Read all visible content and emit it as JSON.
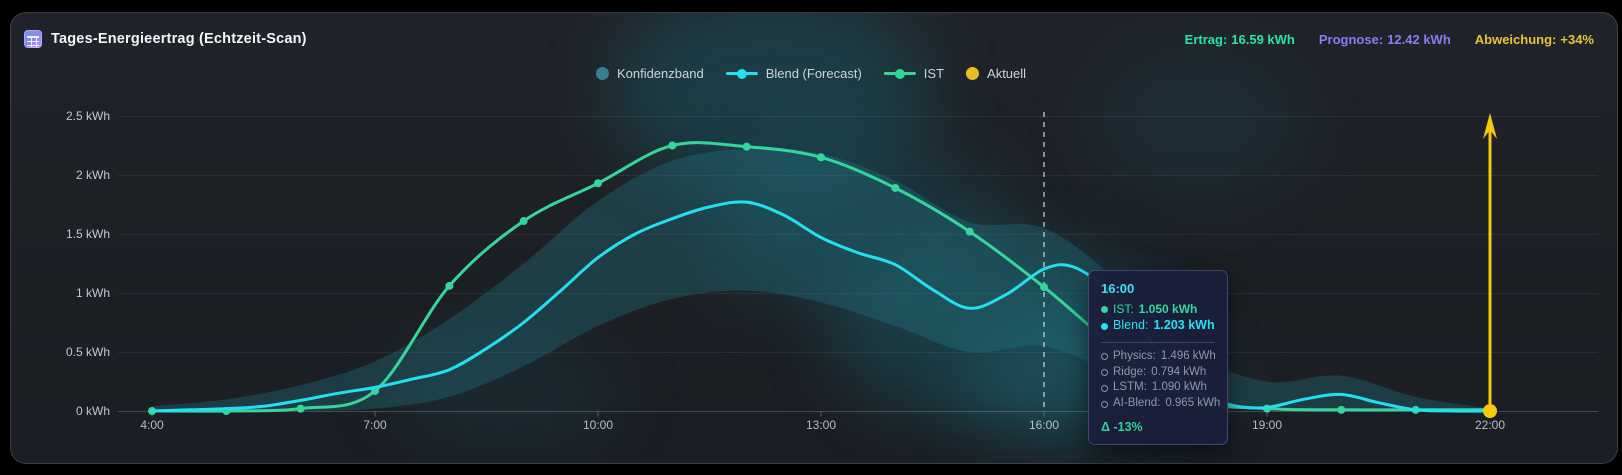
{
  "header": {
    "title": "Tages-Energieertrag (Echtzeit-Scan)"
  },
  "stats": [
    {
      "label": "Ertrag:",
      "value": "16.59 kWh",
      "color": "#2be3a3"
    },
    {
      "label": "Prognose:",
      "value": "12.42 kWh",
      "color": "#8d7bf2"
    },
    {
      "label": "Abweichung:",
      "value": "+34%",
      "color": "#e9c235"
    }
  ],
  "legend": {
    "items": [
      {
        "label": "Konfidenzband",
        "swatch": "band",
        "color": "#3a8a98"
      },
      {
        "label": "Blend (Forecast)",
        "swatch": "line-dot",
        "color": "#23dff1"
      },
      {
        "label": "IST",
        "swatch": "line-dot",
        "color": "#35d69c"
      },
      {
        "label": "Aktuell",
        "swatch": "dot",
        "color": "#e7bf25"
      }
    ]
  },
  "tooltip": {
    "time": "16:00",
    "main": [
      {
        "label": "IST:",
        "value": "1.050 kWh",
        "color": "#37d89e"
      },
      {
        "label": "Blend:",
        "value": "1.203 kWh",
        "color": "#29e0f2"
      }
    ],
    "models": [
      {
        "label": "Physics:",
        "value": "1.496 kWh"
      },
      {
        "label": "Ridge:",
        "value": "0.794 kWh"
      },
      {
        "label": "LSTM:",
        "value": "1.090 kWh"
      },
      {
        "label": "AI-Blend:",
        "value": "0.965 kWh"
      }
    ],
    "delta": "Δ -13%"
  },
  "chart_data": {
    "type": "line",
    "title": "Tages-Energieertrag (Echtzeit-Scan)",
    "grid": true,
    "legend_position": "top-center",
    "x_axis": {
      "range": [
        4,
        22
      ],
      "ticks": [
        4,
        7,
        10,
        13,
        16,
        19,
        22
      ],
      "tick_labels": [
        "4:00",
        "7:00",
        "10:00",
        "13:00",
        "16:00",
        "19:00",
        "22:00"
      ]
    },
    "y_axis": {
      "range": [
        0,
        2.5
      ],
      "ticks": [
        0,
        0.5,
        1,
        1.5,
        2,
        2.5
      ],
      "tick_labels": [
        "0 kWh",
        "0.5 kWh",
        "1 kWh",
        "1.5 kWh",
        "2 kWh",
        "2.5 kWh"
      ]
    },
    "series": [
      {
        "name": "IST",
        "color": "#35d69c",
        "show_points": true,
        "points": [
          [
            4,
            0
          ],
          [
            5,
            0
          ],
          [
            6,
            0.02
          ],
          [
            7,
            0.17
          ],
          [
            8,
            1.06
          ],
          [
            9,
            1.61
          ],
          [
            10,
            1.93
          ],
          [
            11,
            2.25
          ],
          [
            12,
            2.24
          ],
          [
            13,
            2.15
          ],
          [
            14,
            1.89
          ],
          [
            15,
            1.52
          ],
          [
            16,
            1.05
          ],
          [
            17,
            0.52
          ],
          [
            18,
            0.1
          ],
          [
            19,
            0.02
          ],
          [
            20,
            0.01
          ],
          [
            21,
            0.01
          ],
          [
            22,
            0.01
          ]
        ]
      },
      {
        "name": "Blend (Forecast)",
        "color": "#23dff1",
        "show_points": false,
        "points": [
          [
            4,
            0
          ],
          [
            4.5,
            0.01
          ],
          [
            5,
            0.02
          ],
          [
            5.5,
            0.04
          ],
          [
            6,
            0.09
          ],
          [
            6.5,
            0.15
          ],
          [
            7,
            0.2
          ],
          [
            7.5,
            0.27
          ],
          [
            8,
            0.35
          ],
          [
            8.5,
            0.53
          ],
          [
            9,
            0.75
          ],
          [
            9.5,
            1.02
          ],
          [
            10,
            1.3
          ],
          [
            10.5,
            1.5
          ],
          [
            11,
            1.63
          ],
          [
            11.5,
            1.73
          ],
          [
            12,
            1.77
          ],
          [
            12.5,
            1.66
          ],
          [
            13,
            1.47
          ],
          [
            13.5,
            1.34
          ],
          [
            14,
            1.24
          ],
          [
            14.5,
            1.03
          ],
          [
            15,
            0.87
          ],
          [
            15.5,
            0.99
          ],
          [
            16,
            1.203
          ],
          [
            16.4,
            1.22
          ],
          [
            16.9,
            1.0
          ],
          [
            17.3,
            0.7
          ],
          [
            17.8,
            0.3
          ],
          [
            18.2,
            0.12
          ],
          [
            18.6,
            0.04
          ],
          [
            19,
            0.03
          ],
          [
            19.5,
            0.1
          ],
          [
            20,
            0.14
          ],
          [
            20.5,
            0.07
          ],
          [
            21,
            0.01
          ],
          [
            21.5,
            0
          ],
          [
            22,
            0
          ]
        ]
      }
    ],
    "band": {
      "name": "Konfidenzband",
      "color": "rgba(36,130,142,0.30)",
      "points_h_lo_hi": [
        [
          4,
          0,
          0.04
        ],
        [
          5,
          0,
          0.1
        ],
        [
          6,
          0,
          0.22
        ],
        [
          7,
          0.02,
          0.42
        ],
        [
          8,
          0.12,
          0.78
        ],
        [
          9,
          0.38,
          1.25
        ],
        [
          10,
          0.72,
          1.78
        ],
        [
          11,
          0.95,
          2.12
        ],
        [
          12,
          1.02,
          2.22
        ],
        [
          13,
          0.92,
          2.18
        ],
        [
          14,
          0.72,
          1.95
        ],
        [
          15,
          0.5,
          1.6
        ],
        [
          16,
          0.55,
          1.55
        ],
        [
          17,
          0.3,
          1.1
        ],
        [
          18,
          0.05,
          0.5
        ],
        [
          19,
          0.02,
          0.25
        ],
        [
          20,
          0.02,
          0.3
        ],
        [
          21,
          0,
          0.12
        ],
        [
          22,
          0,
          0.02
        ]
      ]
    },
    "marker": {
      "name": "Aktuell",
      "color": "#f6c90e",
      "x": 22,
      "value": 0,
      "arrow": "up"
    },
    "cursor": {
      "x": 16,
      "color": "rgba(224,232,240,0.55)",
      "style": "dashed"
    }
  }
}
